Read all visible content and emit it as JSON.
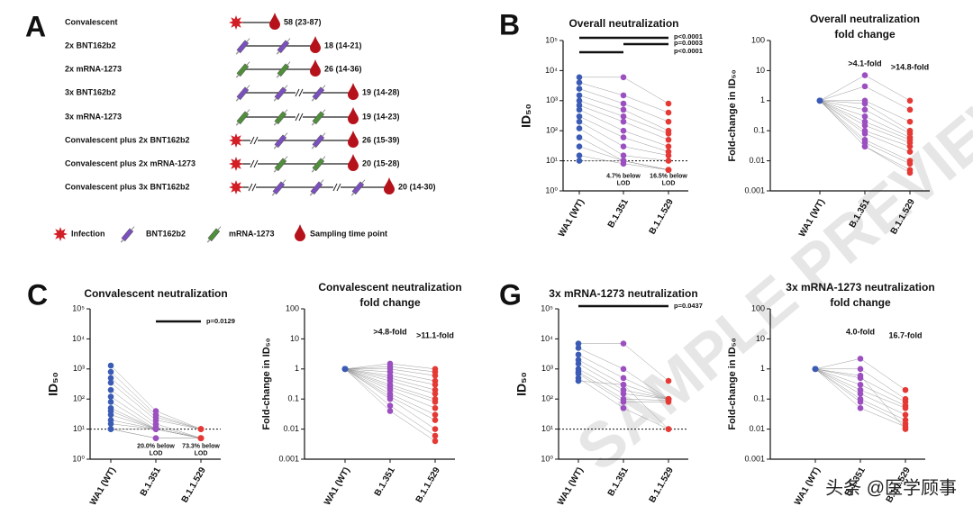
{
  "panels": [
    "A",
    "B",
    "C",
    "G"
  ],
  "schematic": {
    "rows": [
      {
        "label": "Convalescent",
        "value": "58 (23-87)"
      },
      {
        "label": "2x BNT162b2",
        "value": "18 (14-21)"
      },
      {
        "label": "2x mRNA-1273",
        "value": "26 (14-36)"
      },
      {
        "label": "3x BNT162b2",
        "value": "19 (14-28)"
      },
      {
        "label": "3x mRNA-1273",
        "value": "19 (14-23)"
      },
      {
        "label": "Convalescent plus 2x BNT162b2",
        "value": "26 (15-39)"
      },
      {
        "label": "Convalescent plus 2x mRNA-1273",
        "value": "20 (15-28)"
      },
      {
        "label": "Convalescent plus 3x BNT162b2",
        "value": "20 (14-30)"
      }
    ],
    "legend": [
      "Infection",
      "BNT162b2",
      "mRNA-1273",
      "Sampling time point"
    ]
  },
  "chart_data": [
    {
      "type": "scatter",
      "title": "Overall neutralization",
      "ylabel": "ID₅₀",
      "categories": [
        "WA1 (WT)",
        "B.1.351",
        "B.1.1.529"
      ],
      "colors": [
        "#3b5bb5",
        "#9b4fc0",
        "#e53935"
      ],
      "log": true,
      "ylim": [
        1,
        100000
      ],
      "yticks": [
        {
          "value": 1,
          "label": "10⁰"
        },
        {
          "value": 10,
          "label": "10¹"
        },
        {
          "value": 100,
          "label": "10²"
        },
        {
          "value": 1000,
          "label": "10³"
        },
        {
          "value": 10000,
          "label": "10⁴"
        },
        {
          "value": 100000,
          "label": "10⁵"
        }
      ],
      "lod": 10,
      "values": [
        [
          6000,
          4000,
          2500,
          1500,
          1000,
          700,
          500,
          300,
          200,
          120,
          60,
          30,
          15,
          10
        ],
        [
          6000,
          1500,
          800,
          500,
          300,
          200,
          100,
          60,
          30,
          15,
          10,
          10,
          8,
          10
        ],
        [
          800,
          400,
          200,
          100,
          80,
          50,
          30,
          20,
          15,
          10,
          5,
          5,
          5,
          5
        ]
      ],
      "significance": [
        "p<0.0001",
        "p=0.0003",
        "p<0.0001"
      ],
      "lod_labels": [
        [
          "4.7% below",
          "LOD"
        ],
        [
          "16.5% below",
          "LOD"
        ]
      ]
    },
    {
      "type": "scatter",
      "title": "Overall neutralization",
      "subtitle": "fold change",
      "ylabel": "Fold-change in ID₅₀",
      "categories": [
        "WA1 (WT)",
        "B.1.351",
        "B.1.1.529"
      ],
      "colors": [
        "#3b5bb5",
        "#9b4fc0",
        "#e53935"
      ],
      "log": true,
      "ylim": [
        0.001,
        100
      ],
      "yticks": [
        0.001,
        0.01,
        0.1,
        1,
        10,
        100
      ],
      "values": [
        [
          1,
          1,
          1,
          1,
          1,
          1,
          1,
          1,
          1,
          1,
          1,
          1,
          1,
          1
        ],
        [
          7,
          3,
          1,
          0.8,
          0.5,
          0.3,
          0.2,
          0.15,
          0.1,
          0.08,
          0.05,
          0.04,
          0.03,
          0.03
        ],
        [
          1,
          0.5,
          0.2,
          0.1,
          0.08,
          0.06,
          0.05,
          0.04,
          0.03,
          0.02,
          0.01,
          0.008,
          0.005,
          0.004
        ]
      ],
      "annotations": [
        ">4.1-fold",
        ">14.8-fold"
      ]
    },
    {
      "type": "scatter",
      "title": "Convalescent neutralization",
      "ylabel": "ID₅₀",
      "categories": [
        "WA1 (WT)",
        "B.1.351",
        "B.1.1.529"
      ],
      "colors": [
        "#3b5bb5",
        "#9b4fc0",
        "#e53935"
      ],
      "log": true,
      "ylim": [
        1,
        100000
      ],
      "yticks": [
        {
          "value": 1,
          "label": "10⁰"
        },
        {
          "value": 10,
          "label": "10¹"
        },
        {
          "value": 100,
          "label": "10²"
        },
        {
          "value": 1000,
          "label": "10³"
        },
        {
          "value": 10000,
          "label": "10⁴"
        },
        {
          "value": 100000,
          "label": "10⁵"
        }
      ],
      "lod": 10,
      "values": [
        [
          1300,
          800,
          500,
          350,
          200,
          120,
          80,
          50,
          40,
          30,
          20,
          15,
          10,
          10,
          10
        ],
        [
          40,
          30,
          25,
          20,
          15,
          12,
          10,
          10,
          10,
          10,
          10,
          10,
          10,
          5,
          5
        ],
        [
          10,
          10,
          10,
          10,
          5,
          5,
          5,
          5,
          5,
          5,
          5,
          5,
          5,
          5,
          5
        ]
      ],
      "significance": [
        "p=0.0129"
      ],
      "lod_labels": [
        [
          "20.0% below",
          "LOD"
        ],
        [
          "73.3% below",
          "LOD"
        ]
      ]
    },
    {
      "type": "scatter",
      "title": "Convalescent neutralization",
      "subtitle": "fold change",
      "ylabel": "Fold-change in ID₅₀",
      "categories": [
        "WA1 (WT)",
        "B.1.351",
        "B.1.1.529"
      ],
      "colors": [
        "#3b5bb5",
        "#9b4fc0",
        "#e53935"
      ],
      "log": true,
      "ylim": [
        0.001,
        100
      ],
      "yticks": [
        0.001,
        0.01,
        0.1,
        1,
        10,
        100
      ],
      "values": [
        [
          1,
          1,
          1,
          1,
          1,
          1,
          1,
          1,
          1,
          1,
          1,
          1,
          1,
          1,
          1
        ],
        [
          1.5,
          1.2,
          1,
          0.8,
          0.6,
          0.5,
          0.4,
          0.3,
          0.25,
          0.2,
          0.15,
          0.12,
          0.1,
          0.06,
          0.04
        ],
        [
          1,
          0.8,
          0.6,
          0.4,
          0.3,
          0.2,
          0.15,
          0.1,
          0.08,
          0.05,
          0.03,
          0.02,
          0.01,
          0.006,
          0.004
        ]
      ],
      "annotations": [
        ">4.8-fold",
        ">11.1-fold"
      ]
    },
    {
      "type": "scatter",
      "title": "3x mRNA-1273 neutralization",
      "ylabel": "ID₅₀",
      "categories": [
        "WA1 (WT)",
        "B.1.351",
        "B.1.1.529"
      ],
      "colors": [
        "#3b5bb5",
        "#9b4fc0",
        "#e53935"
      ],
      "log": true,
      "ylim": [
        1,
        100000
      ],
      "yticks": [
        {
          "value": 1,
          "label": "10⁰"
        },
        {
          "value": 10,
          "label": "10¹"
        },
        {
          "value": 100,
          "label": "10²"
        },
        {
          "value": 1000,
          "label": "10³"
        },
        {
          "value": 10000,
          "label": "10⁴"
        },
        {
          "value": 100000,
          "label": "10⁵"
        }
      ],
      "lod": 10,
      "values": [
        [
          7000,
          5000,
          3000,
          2000,
          1500,
          1000,
          800,
          700,
          500,
          400
        ],
        [
          7000,
          1000,
          500,
          300,
          200,
          150,
          100,
          80,
          50,
          300
        ],
        [
          400,
          100,
          100,
          100,
          100,
          100,
          90,
          80,
          10,
          10
        ]
      ],
      "significance": [
        "p=0.0437"
      ]
    },
    {
      "type": "scatter",
      "title": "3x mRNA-1273 neutralization",
      "subtitle": "fold change",
      "ylabel": "Fold-change in ID₅₀",
      "categories": [
        "WA1 (WT)",
        "B.1.351",
        "B.1.1.529"
      ],
      "colors": [
        "#3b5bb5",
        "#9b4fc0",
        "#e53935"
      ],
      "log": true,
      "ylim": [
        0.001,
        100
      ],
      "yticks": [
        0.001,
        0.01,
        0.1,
        1,
        10,
        100
      ],
      "values": [
        [
          1,
          1,
          1,
          1,
          1,
          1,
          1,
          1,
          1,
          1
        ],
        [
          2.2,
          1,
          0.5,
          0.3,
          0.2,
          0.15,
          0.1,
          0.08,
          0.05,
          0.6
        ],
        [
          0.2,
          0.1,
          0.08,
          0.06,
          0.05,
          0.03,
          0.02,
          0.015,
          0.012,
          0.01
        ]
      ],
      "annotations": [
        "4.0-fold",
        "16.7-fold"
      ]
    }
  ],
  "watermark": [
    "SAMPLE PREVIEW",
    "头条 @医学顾事"
  ]
}
